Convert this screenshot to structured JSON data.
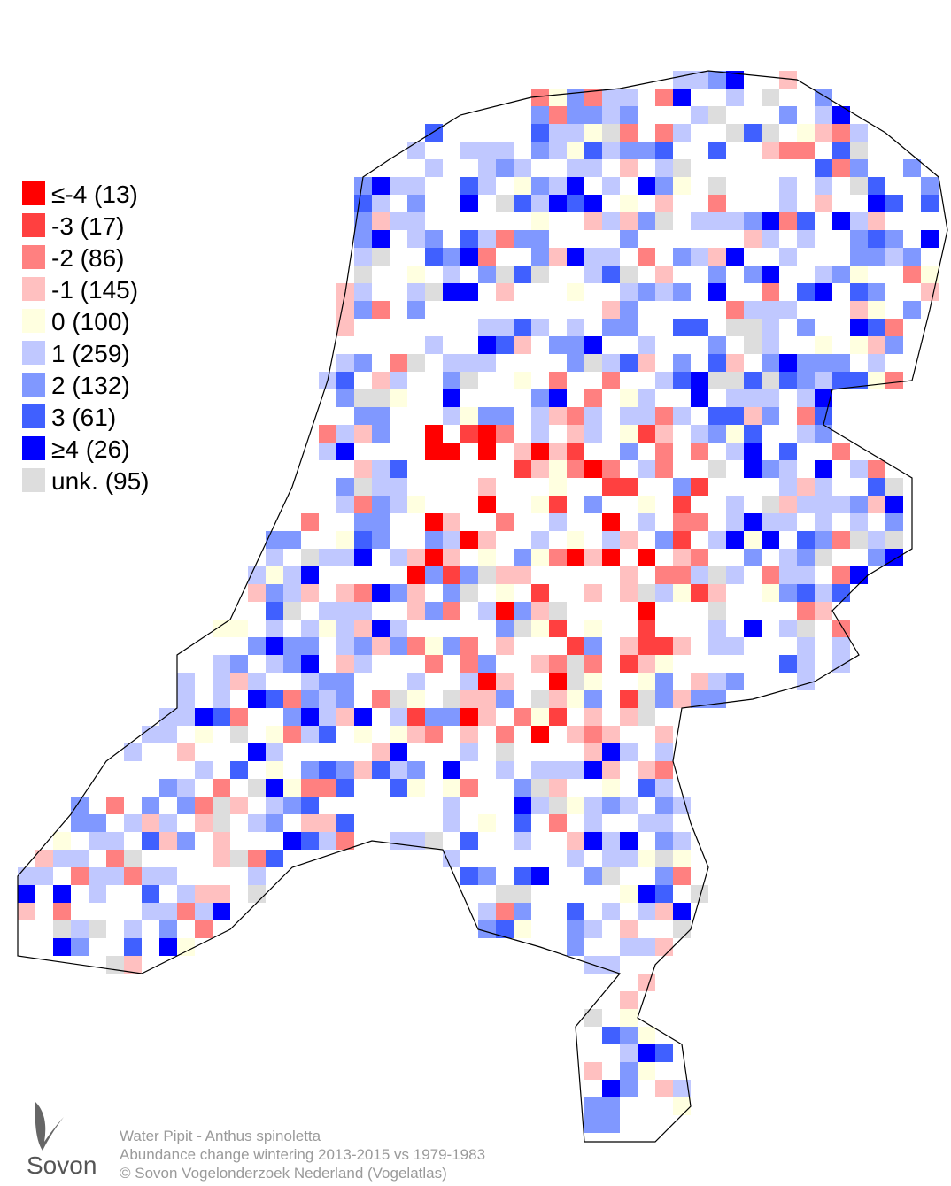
{
  "legend": [
    {
      "label": "≤-4 (13)",
      "color": "#ff0000"
    },
    {
      "label": "-3 (17)",
      "color": "#ff4040"
    },
    {
      "label": "-2 (86)",
      "color": "#ff8080"
    },
    {
      "label": "-1 (145)",
      "color": "#ffc0c0"
    },
    {
      "label": " 0 (100)",
      "color": "#ffffe0"
    },
    {
      "label": " 1 (259)",
      "color": "#c0c8ff"
    },
    {
      "label": " 2 (132)",
      "color": "#8098ff"
    },
    {
      "label": " 3 (61)",
      "color": "#4060ff"
    },
    {
      "label": "≥4 (26)",
      "color": "#0000ff"
    },
    {
      "label": "unk. (95)",
      "color": "#dddddd"
    }
  ],
  "logo": "Sovon",
  "caption": [
    "Water Pipit - Anthus spinoletta",
    "Abundance change wintering  2013-2015 vs 1979-1983",
    "© Sovon Vogelonderzoek Nederland (Vogelatlas)"
  ]
}
